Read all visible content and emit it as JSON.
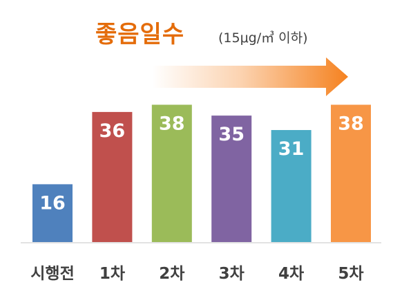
{
  "chart_data": {
    "type": "bar",
    "title": "좋음일수",
    "subtitle": "(15μg/㎥ 이하)",
    "categories": [
      "시행전",
      "1차",
      "2차",
      "3차",
      "4차",
      "5차"
    ],
    "values": [
      16,
      36,
      38,
      35,
      31,
      38
    ],
    "colors": [
      "#4f81bd",
      "#c0504d",
      "#9bbb59",
      "#8064a2",
      "#4bacc6",
      "#f79646"
    ],
    "ylim": [
      0,
      40
    ],
    "data_labels": true,
    "grid": false,
    "arrow": {
      "direction": "right",
      "color": "#f58220",
      "meaning": "increasing trend"
    }
  }
}
